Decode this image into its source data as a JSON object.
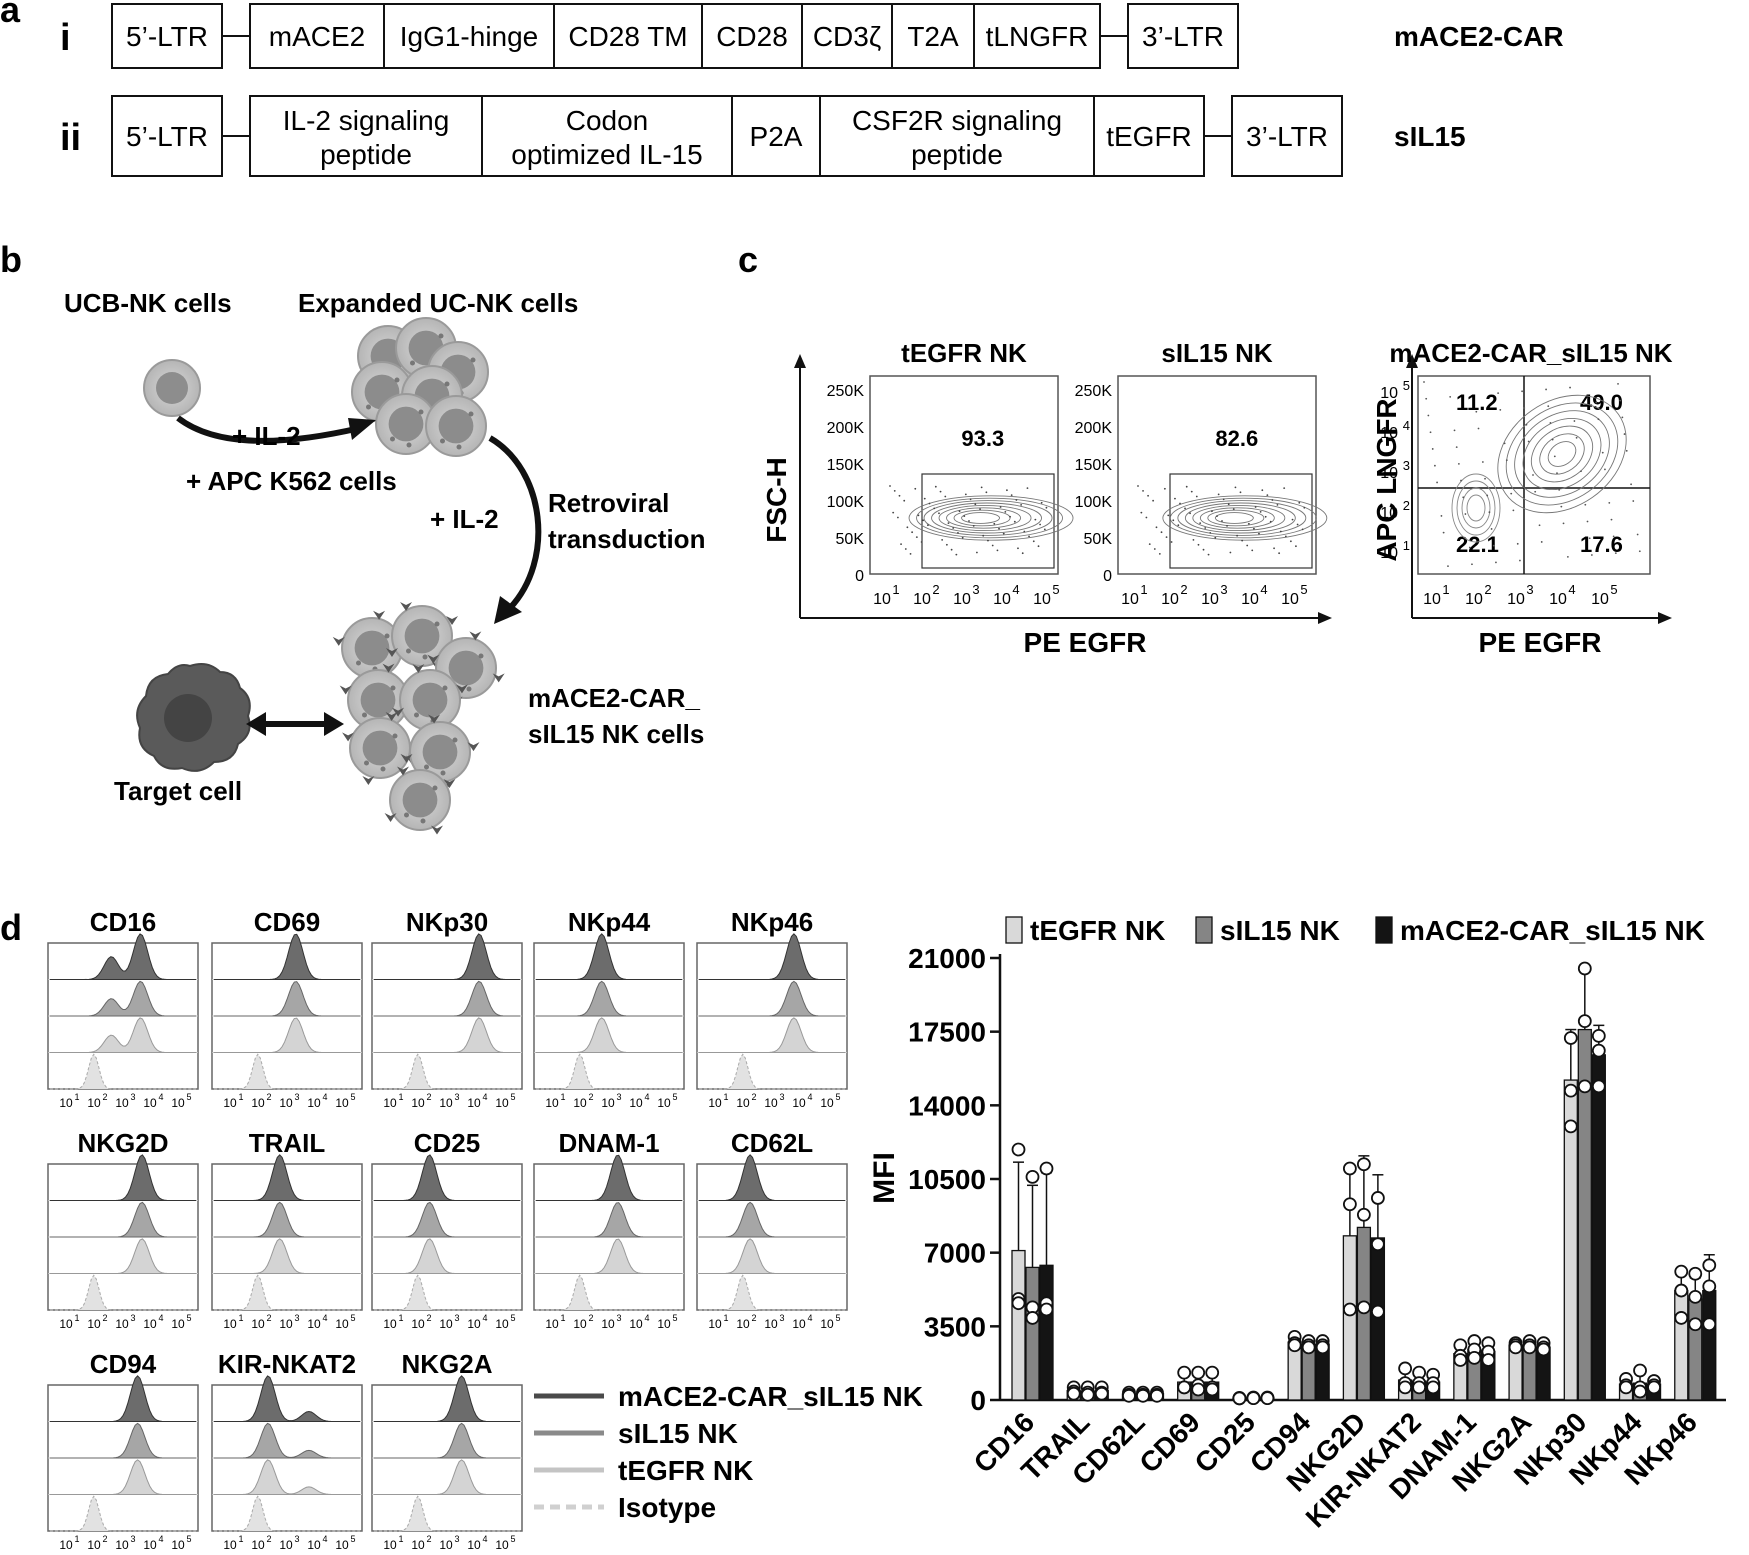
{
  "panel_labels": {
    "a": "a",
    "b": "b",
    "c": "c",
    "d": "d"
  },
  "panel_a": {
    "rows": [
      {
        "roman": "i",
        "name": "mACE2-CAR",
        "blocks": [
          [
            "5’-LTR"
          ],
          [
            "mACE2"
          ],
          [
            "IgG1-hinge"
          ],
          [
            "CD28 TM"
          ],
          [
            "CD28"
          ],
          [
            "CD3ζ"
          ],
          [
            "T2A"
          ],
          [
            "tLNGFR"
          ],
          [
            "3’-LTR"
          ]
        ]
      },
      {
        "roman": "ii",
        "name": "sIL15",
        "blocks": [
          [
            "5’-LTR"
          ],
          [
            "IL-2 signaling",
            "peptide"
          ],
          [
            "Codon",
            "optimized IL-15"
          ],
          [
            "P2A"
          ],
          [
            "CSF2R signaling",
            "peptide"
          ],
          [
            "tEGFR"
          ],
          [
            "3’-LTR"
          ]
        ]
      }
    ]
  },
  "panel_b": {
    "ucb_label": "UCB-NK cells",
    "expanded_label": "Expanded UC-NK cells",
    "step1_il2": "+ IL-2",
    "step1_apc": "+ APC K562 cells",
    "step2_il2": "+ IL-2",
    "step2_retro": [
      "Retroviral",
      "transduction"
    ],
    "car_label": [
      "mACE2-CAR_",
      "sIL15 NK cells"
    ],
    "target_label": "Target cell"
  },
  "panel_c": {
    "plots": [
      {
        "title": "tEGFR NK",
        "gate_value": "93.3"
      },
      {
        "title": "sIL15 NK",
        "gate_value": "82.6"
      }
    ],
    "y_label": "FSC-H",
    "y_ticks": [
      "250K",
      "200K",
      "150K",
      "100K",
      "50K",
      "0"
    ],
    "x_label": "PE EGFR",
    "x_tick_bases": [
      "10",
      "10",
      "10",
      "10",
      "10"
    ],
    "x_tick_exps": [
      "1",
      "2",
      "3",
      "4",
      "5"
    ],
    "quad_plot": {
      "title": "mACE2-CAR_sIL15 NK",
      "y_label": "APC LNGFR",
      "x_label": "PE EGFR",
      "quadrants": {
        "ul": "11.2",
        "ur": "49.0",
        "ll": "22.1",
        "lr": "17.6"
      },
      "y_tick_exps": [
        "5",
        "4",
        "3",
        "2",
        "1"
      ]
    }
  },
  "panel_d_hist": {
    "markers": [
      "CD16",
      "CD69",
      "NKp30",
      "NKp44",
      "NKp46",
      "NKG2D",
      "TRAIL",
      "CD25",
      "DNAM-1",
      "CD62L",
      "CD94",
      "KIR-NKAT2",
      "NKG2A"
    ],
    "legend": [
      "mACE2-CAR_sIL15 NK",
      "sIL15 NK",
      "tEGFR NK",
      "Isotype"
    ],
    "legend_colors": [
      "#4a4a4a",
      "#8a8a8a",
      "#c4c4c4",
      "#d0d0d0"
    ]
  },
  "chart_data": {
    "type": "bar",
    "ylabel": "MFI",
    "ylim": [
      0,
      21000
    ],
    "yticks": [
      0,
      3500,
      7000,
      10500,
      14000,
      17500,
      21000
    ],
    "categories": [
      "CD16",
      "TRAIL",
      "CD62L",
      "CD69",
      "CD25",
      "CD94",
      "NKG2D",
      "KIR-NKAT2",
      "DNAM-1",
      "NKG2A",
      "NKp30",
      "NKp44",
      "NKp46"
    ],
    "series": [
      {
        "name": "tEGFR NK",
        "color": "#d9d9d9",
        "values": [
          7100,
          450,
          280,
          850,
          90,
          2750,
          7800,
          950,
          2200,
          2600,
          15200,
          750,
          5200
        ],
        "errors": [
          4200,
          150,
          100,
          450,
          30,
          250,
          3300,
          450,
          300,
          200,
          2400,
          200,
          1000
        ],
        "points": [
          [
            11900,
            4800,
            4600
          ],
          [
            600,
            400,
            300
          ],
          [
            350,
            250,
            200
          ],
          [
            1300,
            600,
            600
          ],
          [
            100,
            80,
            80
          ],
          [
            3000,
            2700,
            2600
          ],
          [
            9300,
            11000,
            4300
          ],
          [
            1500,
            800,
            600
          ],
          [
            2600,
            2100,
            1900
          ],
          [
            2700,
            2600,
            2500
          ],
          [
            17200,
            14700,
            13000
          ],
          [
            1000,
            700,
            600
          ],
          [
            6100,
            5200,
            3900
          ]
        ]
      },
      {
        "name": "sIL15 NK",
        "color": "#858585",
        "values": [
          6300,
          400,
          300,
          850,
          100,
          2650,
          8200,
          900,
          2400,
          2600,
          17600,
          800,
          4800
        ],
        "errors": [
          3900,
          150,
          100,
          450,
          30,
          250,
          3400,
          400,
          350,
          250,
          2800,
          500,
          1000
        ],
        "points": [
          [
            10600,
            4400,
            3900
          ],
          [
            600,
            350,
            250
          ],
          [
            350,
            250,
            200
          ],
          [
            1300,
            700,
            500
          ],
          [
            120,
            90,
            90
          ],
          [
            2800,
            2600,
            2500
          ],
          [
            11200,
            8800,
            4400
          ],
          [
            1300,
            800,
            600
          ],
          [
            2800,
            2400,
            2000
          ],
          [
            2800,
            2600,
            2500
          ],
          [
            20500,
            18000,
            14900
          ],
          [
            1400,
            600,
            400
          ],
          [
            6000,
            4900,
            3600
          ]
        ]
      },
      {
        "name": "mACE2-CAR_sIL15 NK",
        "color": "#141414",
        "values": [
          6400,
          450,
          300,
          850,
          100,
          2650,
          7700,
          850,
          2300,
          2500,
          16400,
          750,
          5200
        ],
        "errors": [
          4400,
          150,
          100,
          450,
          30,
          250,
          3000,
          400,
          350,
          250,
          1400,
          200,
          1700
        ],
        "points": [
          [
            11000,
            4600,
            4300
          ],
          [
            600,
            350,
            300
          ],
          [
            350,
            250,
            200
          ],
          [
            1300,
            600,
            500
          ],
          [
            120,
            90,
            90
          ],
          [
            2800,
            2600,
            2500
          ],
          [
            9600,
            7400,
            4200
          ],
          [
            1200,
            800,
            600
          ],
          [
            2700,
            2300,
            1900
          ],
          [
            2700,
            2500,
            2400
          ],
          [
            17300,
            16600,
            14900
          ],
          [
            900,
            700,
            600
          ],
          [
            6400,
            5400,
            3600
          ]
        ]
      }
    ]
  }
}
